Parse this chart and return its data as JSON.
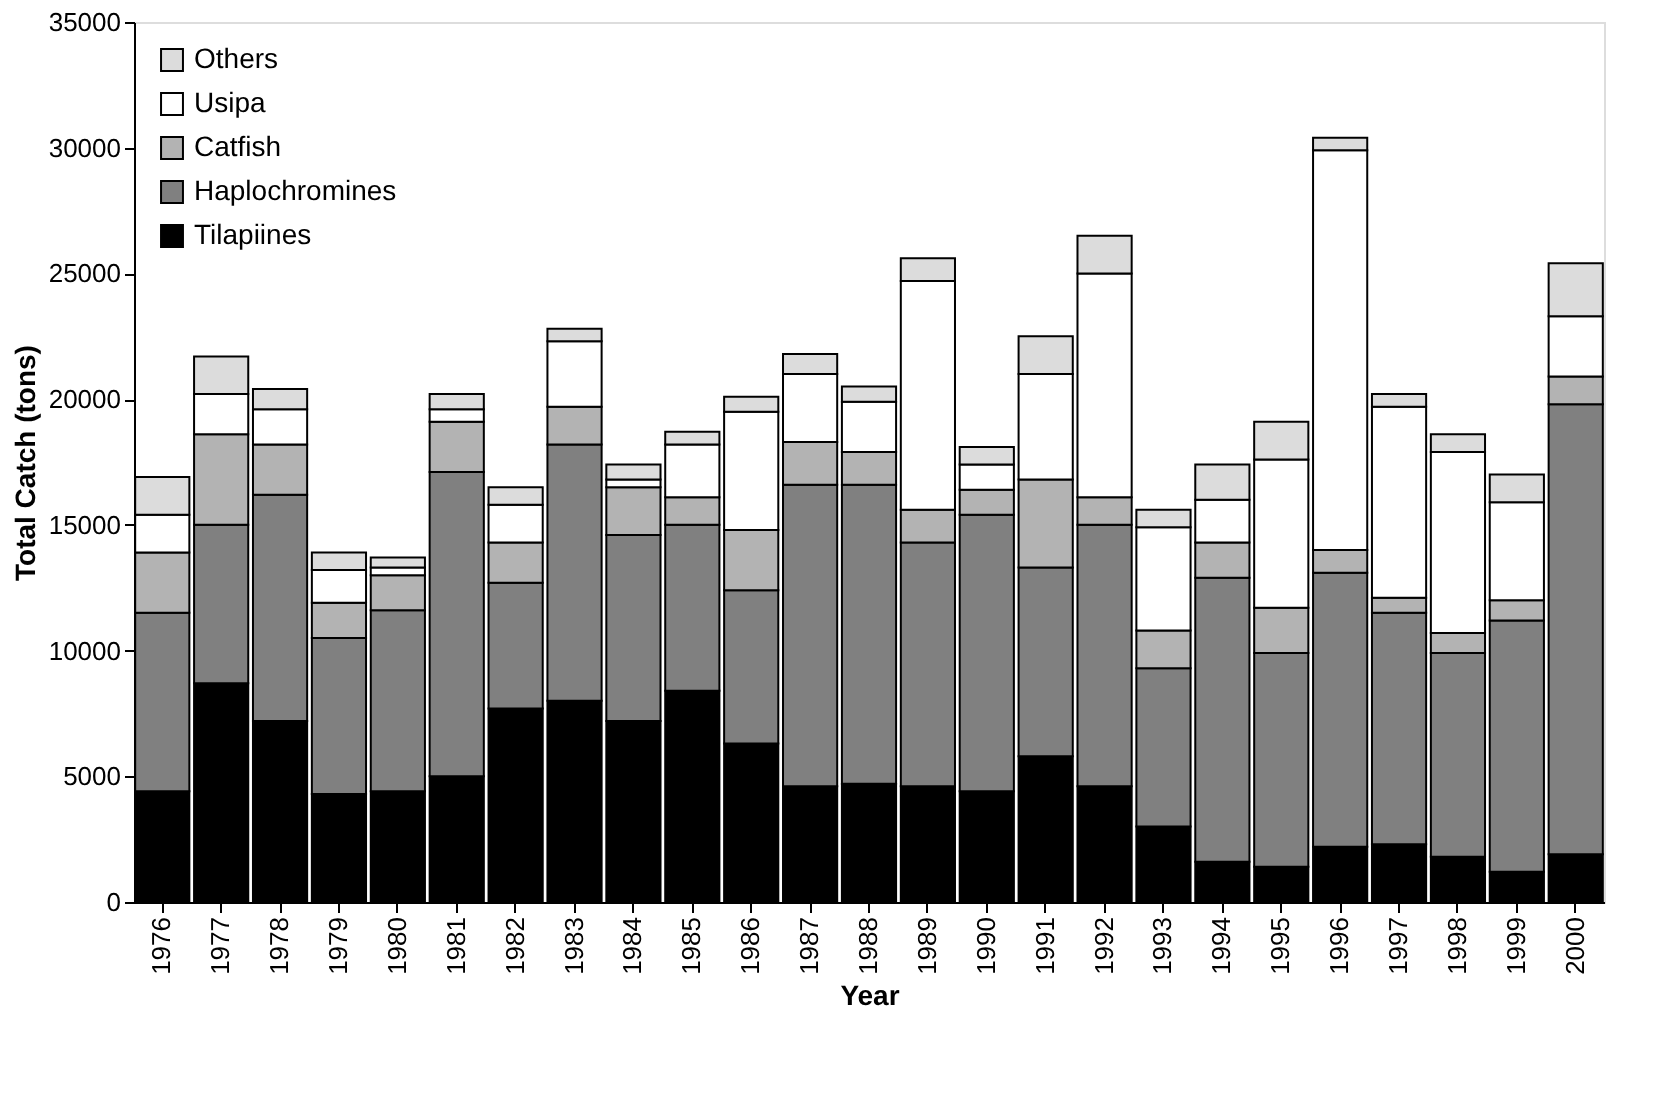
{
  "chart_data": {
    "type": "bar",
    "stacked": true,
    "xlabel": "Year",
    "ylabel": "Total Catch (tons)",
    "categories": [
      "1976",
      "1977",
      "1978",
      "1979",
      "1980",
      "1981",
      "1982",
      "1983",
      "1984",
      "1985",
      "1986",
      "1987",
      "1988",
      "1989",
      "1990",
      "1991",
      "1992",
      "1993",
      "1994",
      "1995",
      "1996",
      "1997",
      "1998",
      "1999",
      "2000"
    ],
    "series": [
      {
        "name": "Tilapiines",
        "color": "#000000",
        "values": [
          4400,
          8700,
          7200,
          4300,
          4400,
          5000,
          7700,
          8000,
          7200,
          8400,
          6300,
          4600,
          4700,
          4600,
          4400,
          5800,
          4600,
          3000,
          1600,
          1400,
          2200,
          2300,
          1800,
          1200,
          1900
        ]
      },
      {
        "name": "Haplochromines",
        "color": "#808080",
        "values": [
          7100,
          6300,
          9000,
          6200,
          7200,
          12100,
          5000,
          10200,
          7400,
          6600,
          6100,
          12000,
          11900,
          9700,
          11000,
          7500,
          10400,
          6300,
          11300,
          8500,
          10900,
          9200,
          8100,
          10000,
          17900
        ]
      },
      {
        "name": "Catfish",
        "color": "#b3b3b3",
        "values": [
          2400,
          3600,
          2000,
          1400,
          1400,
          2000,
          1600,
          1500,
          1900,
          1100,
          2400,
          1700,
          1300,
          1300,
          1000,
          3500,
          1100,
          1500,
          1400,
          1800,
          900,
          600,
          800,
          800,
          1100
        ]
      },
      {
        "name": "Usipa",
        "color": "#ffffff",
        "values": [
          1500,
          1600,
          1400,
          1300,
          300,
          500,
          1500,
          2600,
          300,
          2100,
          4700,
          2700,
          2000,
          9100,
          1000,
          4200,
          8900,
          4100,
          1700,
          5900,
          15900,
          7600,
          7200,
          3900,
          2400
        ]
      },
      {
        "name": "Others",
        "color": "#dcdcdc",
        "values": [
          1500,
          1500,
          800,
          700,
          400,
          600,
          700,
          500,
          600,
          500,
          600,
          800,
          600,
          900,
          700,
          1500,
          1500,
          700,
          1400,
          1500,
          500,
          500,
          700,
          1100,
          2100
        ]
      }
    ],
    "ylim": [
      0,
      35000
    ],
    "yticks": [
      0,
      5000,
      10000,
      15000,
      20000,
      25000,
      30000,
      35000
    ],
    "grid": false,
    "legend": "top left"
  }
}
